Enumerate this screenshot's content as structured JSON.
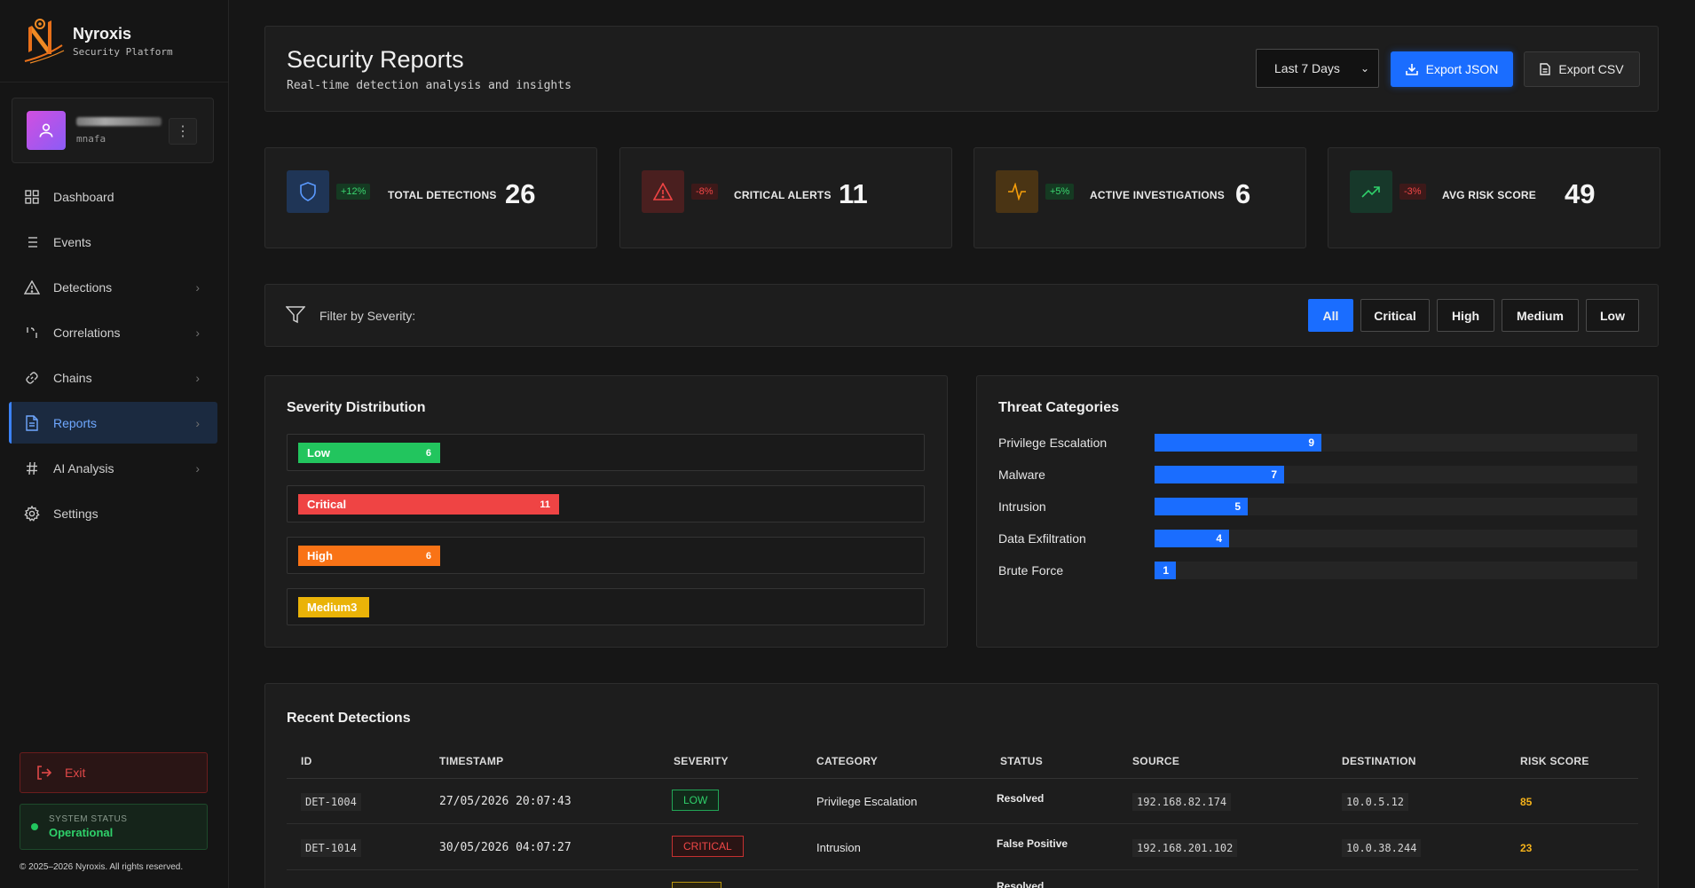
{
  "brand": {
    "name": "Nyroxis",
    "subtitle": "Security Platform"
  },
  "user": {
    "handle": "mnafa"
  },
  "nav": [
    {
      "label": "Dashboard",
      "icon": "grid-icon",
      "has_chevron": false
    },
    {
      "label": "Events",
      "icon": "list-icon",
      "has_chevron": false
    },
    {
      "label": "Detections",
      "icon": "warning-triangle-icon",
      "has_chevron": true
    },
    {
      "label": "Correlations",
      "icon": "correlation-icon",
      "has_chevron": true
    },
    {
      "label": "Chains",
      "icon": "link-icon",
      "has_chevron": true
    },
    {
      "label": "Reports",
      "icon": "document-icon",
      "has_chevron": true,
      "active": true
    },
    {
      "label": "AI Analysis",
      "icon": "hash-icon",
      "has_chevron": true
    },
    {
      "label": "Settings",
      "icon": "gear-icon",
      "has_chevron": false
    }
  ],
  "sidebar_footer": {
    "exit_label": "Exit",
    "status_label": "SYSTEM STATUS",
    "status_value": "Operational",
    "copyright": "© 2025–2026 Nyroxis. All rights reserved."
  },
  "header": {
    "title": "Security Reports",
    "subtitle": "Real-time detection analysis and insights",
    "range_selected": "Last 7 Days",
    "export_json": "Export JSON",
    "export_csv": "Export CSV"
  },
  "stats": [
    {
      "label": "TOTAL DETECTIONS",
      "value": "26",
      "change": "+12%",
      "icon": "shield-icon",
      "accent": "#3b82f6"
    },
    {
      "label": "CRITICAL ALERTS",
      "value": "11",
      "change": "-8%",
      "icon": "alert-triangle-icon",
      "accent": "#ef4444"
    },
    {
      "label": "ACTIVE INVESTIGATIONS",
      "value": "6",
      "change": "+5%",
      "icon": "activity-icon",
      "accent": "#f59e0b"
    },
    {
      "label": "AVG RISK SCORE",
      "value": "49",
      "change": "-3%",
      "icon": "trending-up-icon",
      "accent": "#22c55e"
    }
  ],
  "filter": {
    "label": "Filter by Severity:",
    "options": [
      "All",
      "Critical",
      "High",
      "Medium",
      "Low"
    ],
    "selected": "All"
  },
  "severity_distribution": {
    "title": "Severity Distribution",
    "rows": [
      {
        "label": "Low",
        "value": "6",
        "color": "#22c55e"
      },
      {
        "label": "Critical",
        "value": "11",
        "color": "#ef4444"
      },
      {
        "label": "High",
        "value": "6",
        "color": "#f97316"
      },
      {
        "label": "Medium",
        "value": "3",
        "color": "#eab308"
      }
    ]
  },
  "threat_categories": {
    "title": "Threat Categories",
    "rows": [
      {
        "label": "Privilege Escalation",
        "value": "9"
      },
      {
        "label": "Malware",
        "value": "7"
      },
      {
        "label": "Intrusion",
        "value": "5"
      },
      {
        "label": "Data Exfiltration",
        "value": "4"
      },
      {
        "label": "Brute Force",
        "value": "1"
      }
    ]
  },
  "recent": {
    "title": "Recent Detections",
    "columns": [
      "ID",
      "TIMESTAMP",
      "SEVERITY",
      "CATEGORY",
      "STATUS",
      "SOURCE",
      "DESTINATION",
      "RISK SCORE"
    ],
    "rows": [
      {
        "id": "DET-1004",
        "timestamp": "27/05/2026 20:07:43",
        "severity": "LOW",
        "category": "Privilege Escalation",
        "status": "Resolved",
        "source": "192.168.82.174",
        "destination": "10.0.5.12",
        "risk": "85"
      },
      {
        "id": "DET-1014",
        "timestamp": "30/05/2026 04:07:27",
        "severity": "CRITICAL",
        "category": "Intrusion",
        "status": "False Positive",
        "source": "192.168.201.102",
        "destination": "10.0.38.244",
        "risk": "23"
      },
      {
        "status": "Resolved"
      }
    ]
  }
}
